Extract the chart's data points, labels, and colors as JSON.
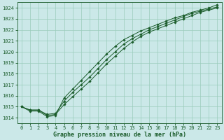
{
  "xlabel": "Graphe pression niveau de la mer (hPa)",
  "ylabel": "",
  "xlim": [
    -0.5,
    23.5
  ],
  "ylim": [
    1013.5,
    1024.5
  ],
  "yticks": [
    1014,
    1015,
    1016,
    1017,
    1018,
    1019,
    1020,
    1021,
    1022,
    1023,
    1024
  ],
  "xticks": [
    0,
    1,
    2,
    3,
    4,
    5,
    6,
    7,
    8,
    9,
    10,
    11,
    12,
    13,
    14,
    15,
    16,
    17,
    18,
    19,
    20,
    21,
    22,
    23
  ],
  "bg_color": "#cbe8e8",
  "grid_color": "#99ccbb",
  "line_color": "#1a5c2a",
  "line1": [
    1015.0,
    1014.7,
    1014.7,
    1014.2,
    1014.3,
    1015.2,
    1015.9,
    1016.6,
    1017.3,
    1018.1,
    1018.9,
    1019.6,
    1020.3,
    1020.9,
    1021.4,
    1021.8,
    1022.1,
    1022.4,
    1022.7,
    1023.0,
    1023.3,
    1023.6,
    1023.8,
    1024.0
  ],
  "line2": [
    1015.0,
    1014.7,
    1014.7,
    1014.3,
    1014.4,
    1015.5,
    1016.3,
    1017.0,
    1017.7,
    1018.5,
    1019.3,
    1020.0,
    1020.7,
    1021.2,
    1021.6,
    1022.0,
    1022.3,
    1022.6,
    1022.9,
    1023.2,
    1023.5,
    1023.7,
    1023.9,
    1024.1
  ],
  "line3": [
    1015.0,
    1014.6,
    1014.6,
    1014.1,
    1014.2,
    1015.8,
    1016.6,
    1017.4,
    1018.2,
    1019.0,
    1019.8,
    1020.5,
    1021.1,
    1021.5,
    1021.9,
    1022.2,
    1022.5,
    1022.8,
    1023.1,
    1023.3,
    1023.6,
    1023.8,
    1024.0,
    1024.3
  ]
}
